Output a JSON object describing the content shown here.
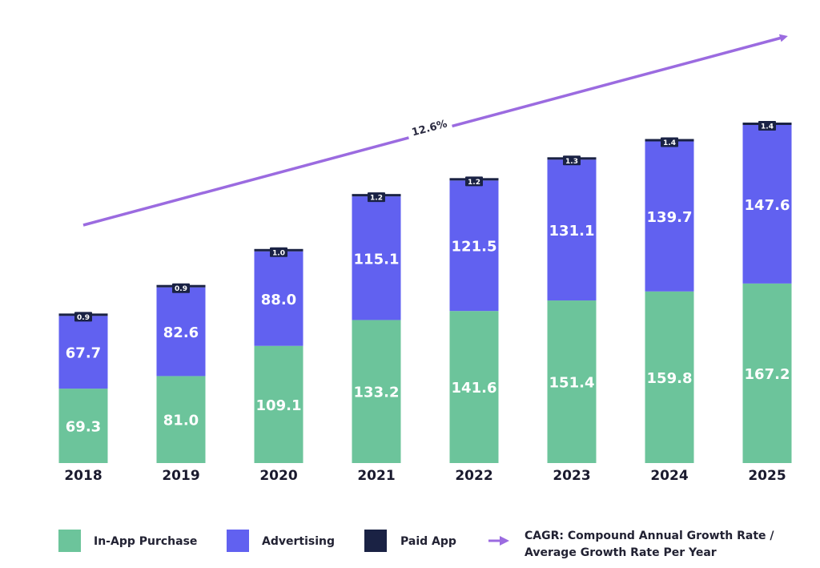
{
  "chart_data": {
    "type": "bar",
    "stacked": true,
    "categories": [
      "2018",
      "2019",
      "2020",
      "2021",
      "2022",
      "2023",
      "2024",
      "2025"
    ],
    "series": [
      {
        "name": "In-App Purchase",
        "color": "#6cc49b",
        "values": [
          69.3,
          81.0,
          109.1,
          133.2,
          141.6,
          151.4,
          159.8,
          167.2
        ]
      },
      {
        "name": "Advertising",
        "color": "#6161f0",
        "values": [
          67.7,
          82.6,
          88.0,
          115.1,
          121.5,
          131.1,
          139.7,
          147.6
        ]
      },
      {
        "name": "Paid App",
        "color": "#1a2244",
        "values": [
          0.9,
          0.9,
          1.0,
          1.2,
          1.2,
          1.3,
          1.4,
          1.4
        ]
      }
    ],
    "cagr": {
      "value_label": "12.6%",
      "color": "#9b6be0"
    },
    "ylim": [
      0,
      320
    ],
    "grid": false,
    "legend_position": "bottom"
  },
  "legend": {
    "items": [
      "In-App Purchase",
      "Advertising",
      "Paid App"
    ],
    "cagr_line1": "CAGR: Compound Annual Growth Rate /",
    "cagr_line2": "Average Growth Rate Per Year"
  }
}
